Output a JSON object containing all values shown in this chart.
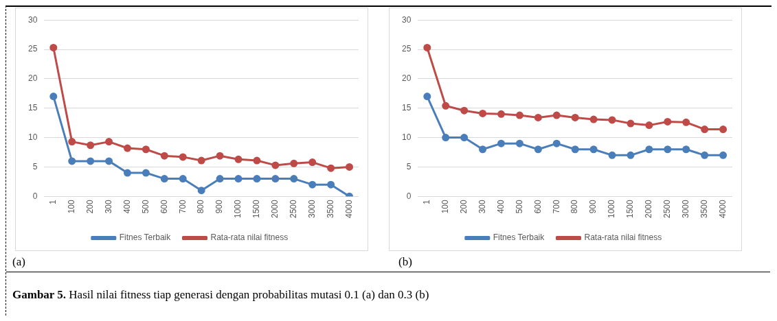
{
  "chart_data": [
    {
      "type": "line",
      "categories": [
        "1",
        "100",
        "200",
        "300",
        "400",
        "500",
        "600",
        "700",
        "800",
        "900",
        "1000",
        "1500",
        "2000",
        "2500",
        "3000",
        "3500",
        "4000"
      ],
      "series": [
        {
          "name": "Fitnes Terbaik",
          "color": "#4a7ebb",
          "values": [
            17,
            6,
            6,
            6,
            4,
            4,
            3,
            3,
            1,
            3,
            3,
            3,
            3,
            3,
            2,
            2,
            0
          ]
        },
        {
          "name": "Rata-rata nilai fitness",
          "color": "#be4b48",
          "values": [
            25.3,
            9.3,
            8.7,
            9.3,
            8.2,
            8.0,
            6.9,
            6.7,
            6.1,
            6.9,
            6.3,
            6.1,
            5.3,
            5.6,
            5.8,
            4.8,
            5.0
          ]
        }
      ],
      "ylim": [
        0,
        30
      ],
      "yticks": [
        0,
        5,
        10,
        15,
        20,
        25,
        30
      ],
      "grid": "y",
      "legend": "bottom",
      "marker": "circle",
      "annotations": [
        "(a)"
      ]
    },
    {
      "type": "line",
      "categories": [
        "1",
        "100",
        "200",
        "300",
        "400",
        "500",
        "600",
        "700",
        "800",
        "900",
        "1000",
        "1500",
        "2000",
        "2500",
        "3000",
        "3500",
        "4000"
      ],
      "series": [
        {
          "name": "Fitnes Terbaik",
          "color": "#4a7ebb",
          "values": [
            17,
            10,
            10,
            8,
            9,
            9,
            8,
            9,
            8,
            8,
            7,
            7,
            8,
            8,
            8,
            7,
            7
          ]
        },
        {
          "name": "Rata-rata nilai fitness",
          "color": "#be4b48",
          "values": [
            25.3,
            15.4,
            14.6,
            14.1,
            14.0,
            13.8,
            13.4,
            13.8,
            13.4,
            13.1,
            13.0,
            12.4,
            12.1,
            12.7,
            12.6,
            11.4,
            11.4
          ]
        }
      ],
      "ylim": [
        0,
        30
      ],
      "yticks": [
        0,
        5,
        10,
        15,
        20,
        25,
        30
      ],
      "grid": "y",
      "legend": "bottom",
      "marker": "circle",
      "annotations": [
        "(b)",
        "Gambar 5. Hasil nilai fitness tiap generasi dengan probabilitas mutasi 0.1 (a) dan 0.3 (b)"
      ]
    }
  ]
}
